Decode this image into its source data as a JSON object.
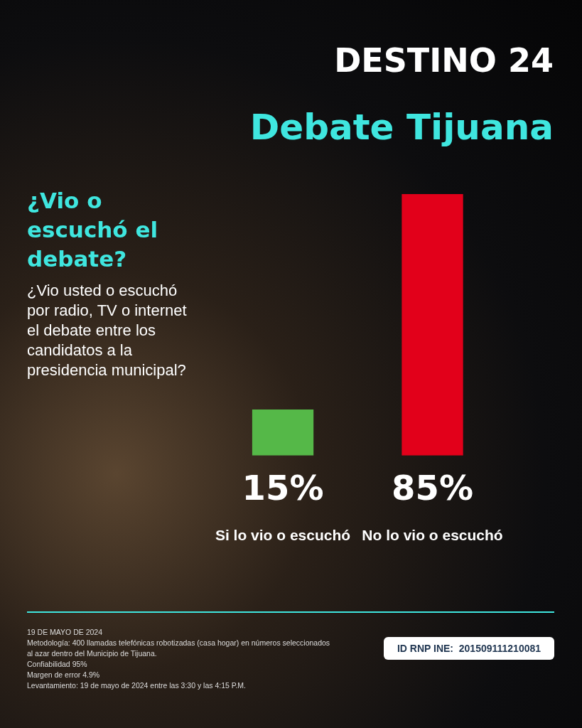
{
  "chart_data": {
    "type": "bar",
    "title": "DESTINO 24",
    "subtitle": "Debate Tijuana",
    "categories": [
      "Si lo vio o escuchó",
      "No lo vio o escuchó"
    ],
    "values": [
      15,
      85
    ],
    "colors": [
      "#55b848",
      "#e2001a"
    ],
    "value_labels": [
      "15%",
      "85%"
    ],
    "grid": false,
    "legend": false,
    "annotations": [
      "¿Vio o escuchó el debate?",
      "¿Vio usted o escuchó por radio, TV o internet el debate entre los candidatos a la presidencia municipal?",
      "19 DE MAYO DE 2024",
      "Metodología: 400 llamadas telefónicas robotizadas (casa hogar) en números seleccionados al azar dentro del Municipio de Tijuana.",
      "Confiabilidad 95%",
      "Margen de error 4.9%",
      "Levantamiento: 19 de mayo de 2024 entre las 3:30 y las 4:15 P.M.",
      "ID RNP INE:  201509111210081"
    ]
  }
}
